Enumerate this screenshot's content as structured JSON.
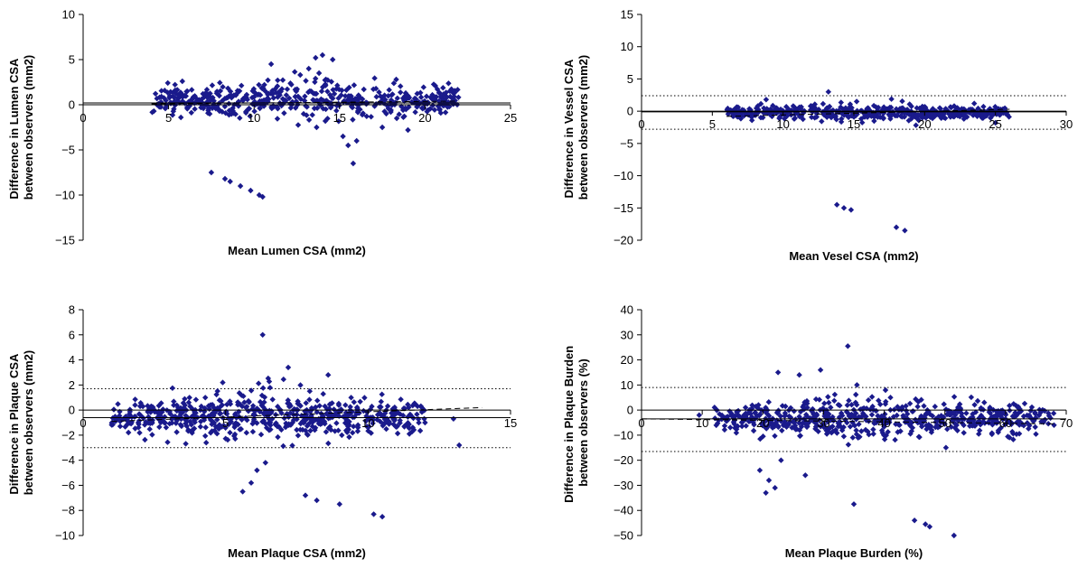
{
  "chart_data": [
    {
      "type": "scatter",
      "xlabel": "Mean Lumen CSA (mm2)",
      "ylabel": [
        "Difference in Lumen CSA",
        "between observers (mm2)"
      ],
      "xlim": [
        0,
        25
      ],
      "ylim": [
        -15,
        10
      ],
      "xticks": [
        0,
        5,
        10,
        15,
        20,
        25
      ],
      "yticks": [
        -15,
        -10,
        -5,
        0,
        5,
        10
      ],
      "mean_diff": 0.2,
      "limits_of_agreement": [],
      "trend": [
        [
          4,
          0.1
        ],
        [
          22,
          0.4
        ]
      ],
      "marker_color": "#1a1a8c",
      "cloud": {
        "x_range": [
          4,
          22
        ],
        "y_center": 0.5,
        "y_spread": 1.2,
        "count": 520
      },
      "points": [
        [
          7.5,
          -7.5
        ],
        [
          8.3,
          -8.2
        ],
        [
          8.6,
          -8.5
        ],
        [
          9.2,
          -9.0
        ],
        [
          9.8,
          -9.5
        ],
        [
          10.3,
          -10.0
        ],
        [
          10.5,
          -10.2
        ],
        [
          13.2,
          4.0
        ],
        [
          13.6,
          5.2
        ],
        [
          14.0,
          5.5
        ],
        [
          14.6,
          5.0
        ],
        [
          13.8,
          3.5
        ],
        [
          14.2,
          2.8
        ],
        [
          11.0,
          4.5
        ],
        [
          15.2,
          -3.5
        ],
        [
          15.5,
          -4.5
        ],
        [
          15.8,
          -6.5
        ],
        [
          16.0,
          -4.0
        ],
        [
          17.5,
          -2.5
        ],
        [
          19.0,
          -2.8
        ]
      ]
    },
    {
      "type": "scatter",
      "xlabel": "Mean Vesel CSA (mm2)",
      "ylabel": [
        "Difference in Vessel CSA",
        "between observers (mm2)"
      ],
      "xlim": [
        0,
        30
      ],
      "ylim": [
        -20,
        15
      ],
      "xticks": [
        0,
        5,
        10,
        15,
        20,
        25,
        30
      ],
      "yticks": [
        -20,
        -15,
        -10,
        -5,
        0,
        5,
        10,
        15
      ],
      "mean_diff": -0.1,
      "limits_of_agreement": [
        2.4,
        -2.8
      ],
      "trend": [
        [
          6,
          -0.8
        ],
        [
          26,
          0.3
        ]
      ],
      "marker_color": "#1a1a8c",
      "cloud": {
        "x_range": [
          6,
          26
        ],
        "y_center": -0.2,
        "y_spread": 0.7,
        "count": 480
      },
      "points": [
        [
          13.8,
          -14.5
        ],
        [
          14.3,
          -15.0
        ],
        [
          14.8,
          -15.3
        ],
        [
          18.0,
          -18.0
        ],
        [
          18.6,
          -18.5
        ],
        [
          13.2,
          3.0
        ],
        [
          8.8,
          1.8
        ],
        [
          15.2,
          1.5
        ],
        [
          25.0,
          -1.8
        ],
        [
          23.5,
          1.2
        ]
      ]
    },
    {
      "type": "scatter",
      "xlabel": "Mean Plaque CSA (mm2)",
      "ylabel": [
        "Difference in Plaque CSA",
        "between observers (mm2)"
      ],
      "xlim": [
        0,
        15
      ],
      "ylim": [
        -10,
        8
      ],
      "xticks": [
        0,
        5,
        10,
        15
      ],
      "yticks": [
        -10,
        -8,
        -6,
        -4,
        -2,
        0,
        2,
        4,
        6,
        8
      ],
      "mean_diff": -0.6,
      "limits_of_agreement": [
        1.7,
        -3.0
      ],
      "trend": [
        [
          1,
          -0.9
        ],
        [
          14,
          0.2
        ]
      ],
      "marker_color": "#1a1a8c",
      "cloud": {
        "x_range": [
          1,
          12
        ],
        "y_center": -0.6,
        "y_spread": 1.1,
        "count": 600
      },
      "points": [
        [
          6.3,
          6.0
        ],
        [
          5.6,
          -6.5
        ],
        [
          5.9,
          -5.8
        ],
        [
          6.1,
          -4.8
        ],
        [
          6.4,
          -4.2
        ],
        [
          7.8,
          -6.8
        ],
        [
          8.2,
          -7.2
        ],
        [
          9.0,
          -7.5
        ],
        [
          10.2,
          -8.3
        ],
        [
          10.5,
          -8.5
        ],
        [
          13.2,
          -2.8
        ],
        [
          13.0,
          -0.7
        ],
        [
          7.2,
          3.4
        ],
        [
          8.6,
          2.8
        ],
        [
          4.9,
          2.2
        ],
        [
          12.0,
          -1.0
        ]
      ]
    },
    {
      "type": "scatter",
      "xlabel": "Mean Plaque Burden (%)",
      "ylabel": [
        "Difference in Plaque Burden",
        "between observers (%)"
      ],
      "xlim": [
        0,
        70
      ],
      "ylim": [
        -50,
        40
      ],
      "xticks": [
        0,
        10,
        20,
        30,
        40,
        50,
        60,
        70
      ],
      "yticks": [
        -50,
        -40,
        -30,
        -20,
        -10,
        0,
        10,
        20,
        30,
        40
      ],
      "mean_diff": -3.5,
      "limits_of_agreement": [
        9.0,
        -16.5
      ],
      "trend": [
        [
          0,
          -3.5
        ],
        [
          68,
          -5.5
        ]
      ],
      "marker_color": "#1a1a8c",
      "cloud": {
        "x_range": [
          12,
          68
        ],
        "y_center": -3.0,
        "y_spread": 4.5,
        "count": 600
      },
      "points": [
        [
          9.5,
          -2.0
        ],
        [
          34.0,
          25.5
        ],
        [
          35.0,
          -37.5
        ],
        [
          45.0,
          -44.0
        ],
        [
          46.8,
          -45.5
        ],
        [
          47.5,
          -46.5
        ],
        [
          51.5,
          -50.0
        ],
        [
          20.5,
          -33.0
        ],
        [
          22.0,
          -31.0
        ],
        [
          21.0,
          -28.0
        ],
        [
          23.0,
          -20.0
        ],
        [
          19.5,
          -24.0
        ],
        [
          22.5,
          15.0
        ],
        [
          26.0,
          14.0
        ],
        [
          29.5,
          16.0
        ],
        [
          27.0,
          -26.0
        ],
        [
          35.5,
          10.0
        ]
      ]
    }
  ]
}
